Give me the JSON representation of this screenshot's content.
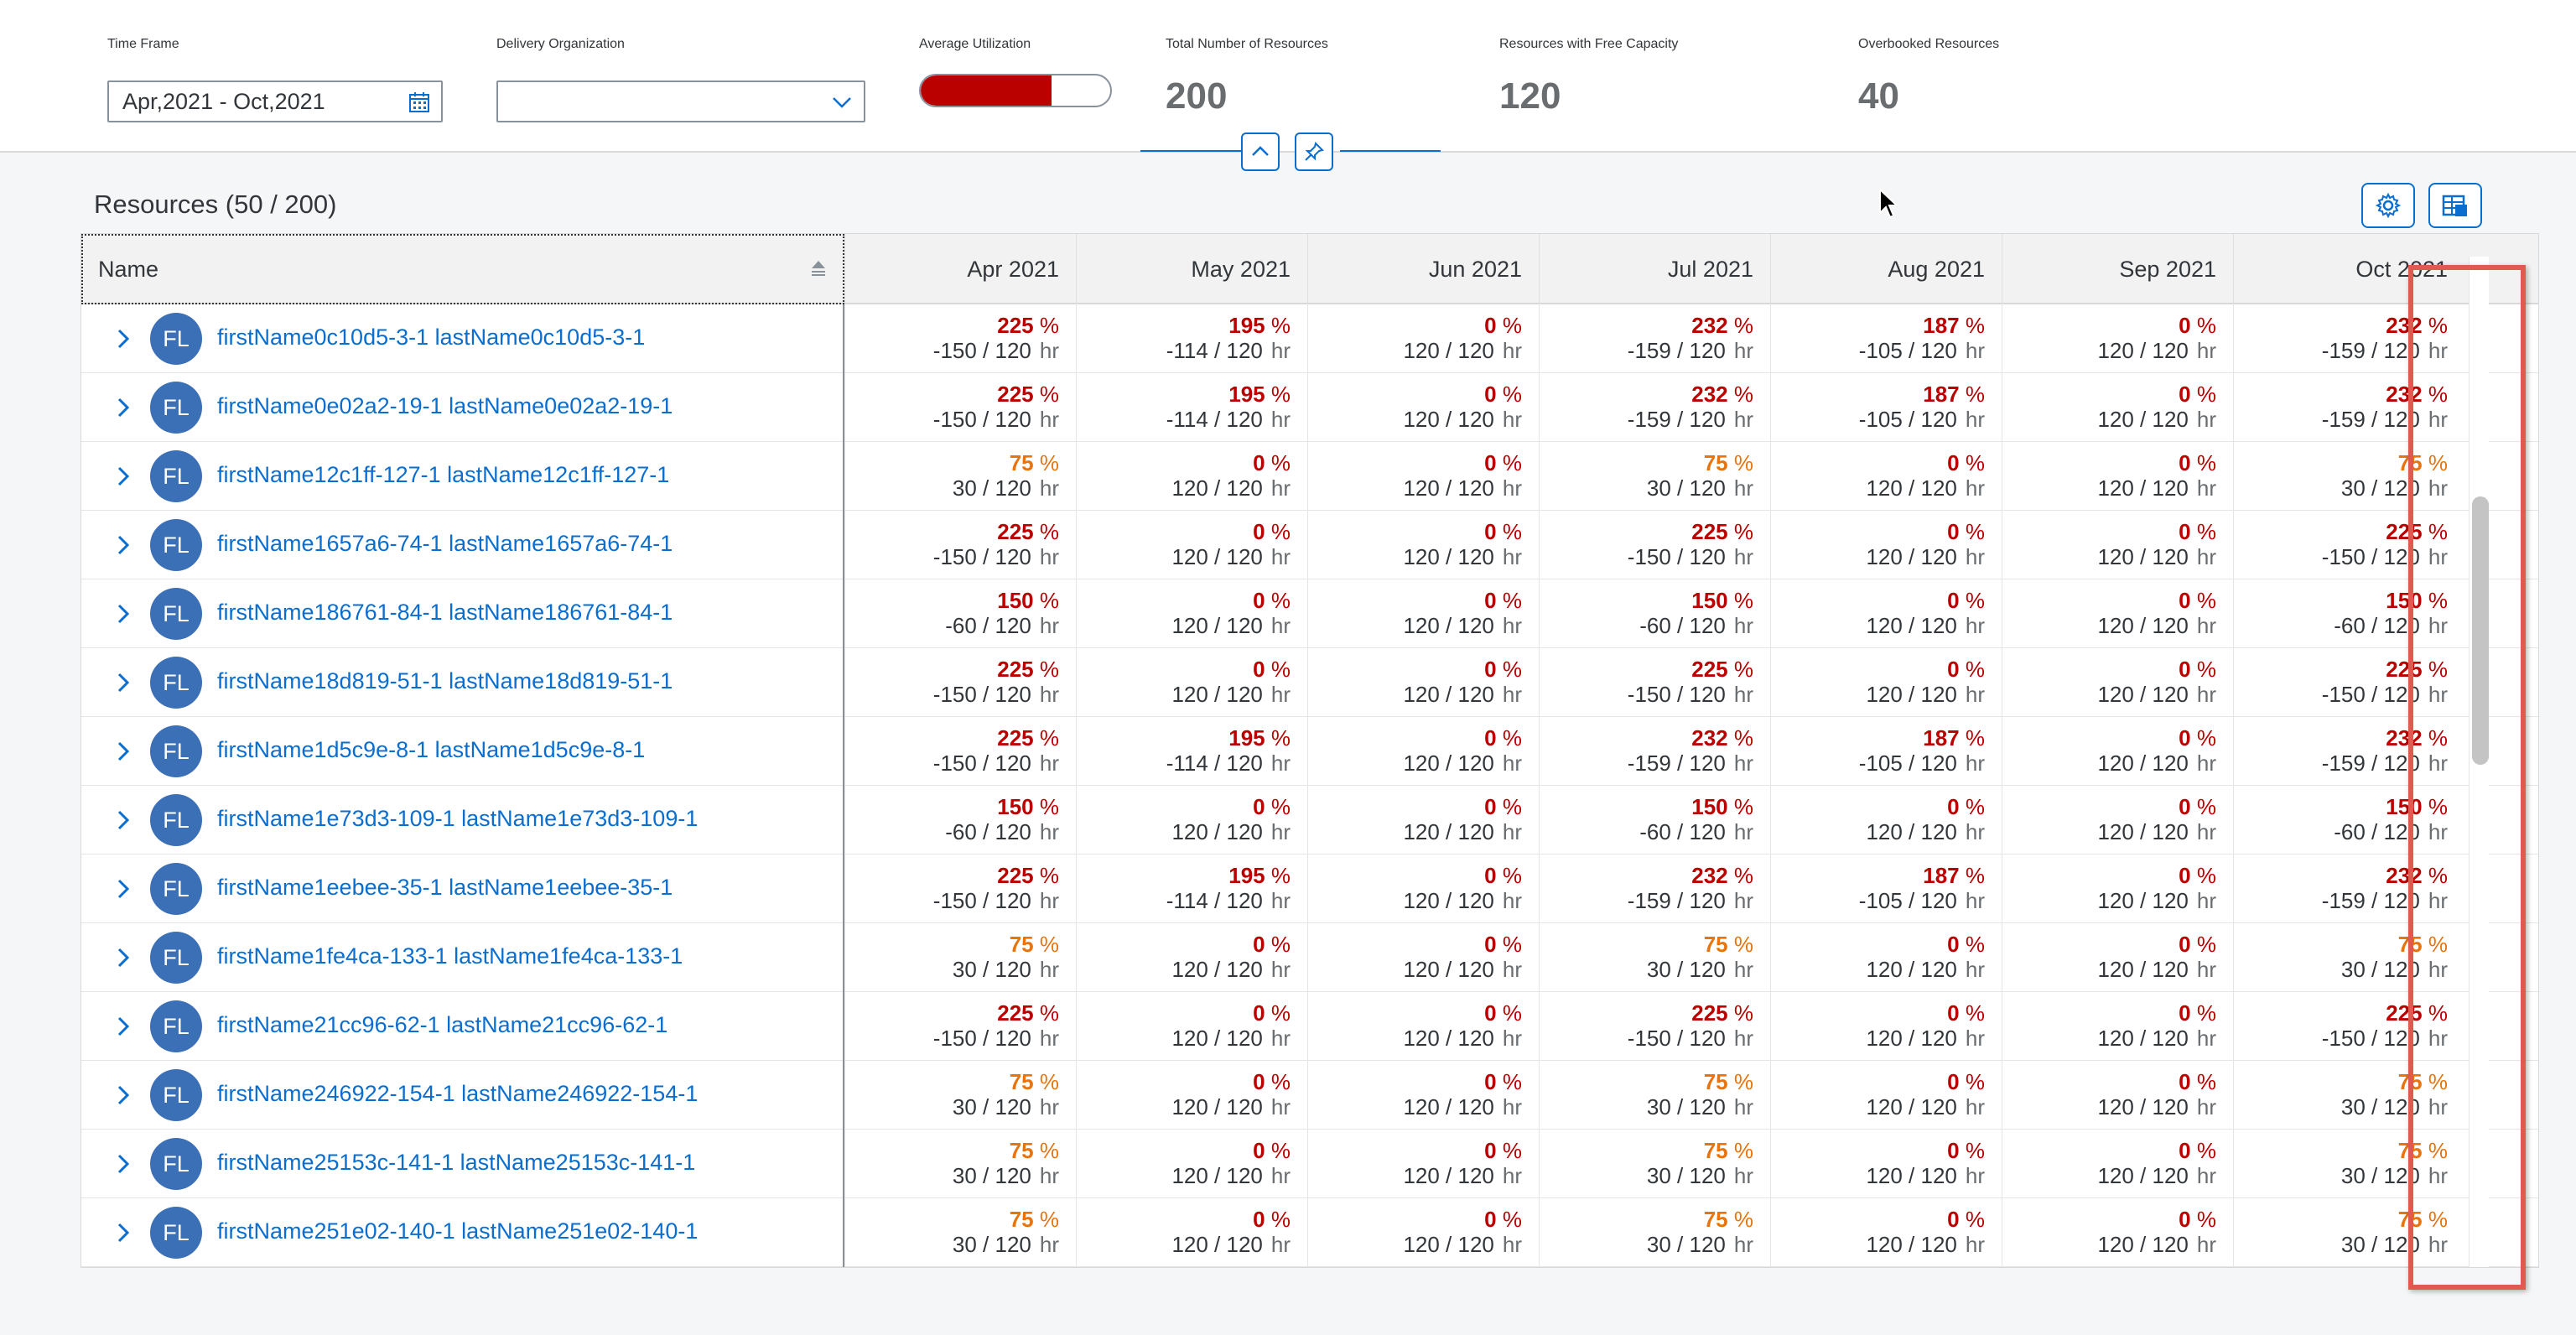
{
  "filters": {
    "time_frame_label": "Time Frame",
    "time_frame_value": "Apr,2021 - Oct,2021",
    "delivery_org_label": "Delivery Organization",
    "delivery_org_value": ""
  },
  "kpis": {
    "avg_util_label": "Average Utilization",
    "avg_util_value": "69%",
    "avg_util_fraction": 0.69,
    "total_label": "Total Number of Resources",
    "total_value": "200",
    "free_label": "Resources with Free Capacity",
    "free_value": "120",
    "overbooked_label": "Overbooked Resources",
    "overbooked_value": "40"
  },
  "table": {
    "title": "Resources (50 / 200)",
    "name_header": "Name",
    "months": [
      "Apr 2021",
      "May 2021",
      "Jun 2021",
      "Jul 2021",
      "Aug 2021",
      "Sep 2021",
      "Oct 2021"
    ],
    "unit_pct": "%",
    "unit_hr": "hr",
    "rows": [
      {
        "initials": "FL",
        "name": "firstName0c10d5-3-1 lastName0c10d5-3-1",
        "cells": [
          [
            "225",
            "-150 / 120"
          ],
          [
            "195",
            "-114 / 120"
          ],
          [
            "0",
            "120 / 120"
          ],
          [
            "232",
            "-159 / 120"
          ],
          [
            "187",
            "-105 / 120"
          ],
          [
            "0",
            "120 / 120"
          ],
          [
            "232",
            "-159 / 120"
          ]
        ]
      },
      {
        "initials": "FL",
        "name": "firstName0e02a2-19-1 lastName0e02a2-19-1",
        "cells": [
          [
            "225",
            "-150 / 120"
          ],
          [
            "195",
            "-114 / 120"
          ],
          [
            "0",
            "120 / 120"
          ],
          [
            "232",
            "-159 / 120"
          ],
          [
            "187",
            "-105 / 120"
          ],
          [
            "0",
            "120 / 120"
          ],
          [
            "232",
            "-159 / 120"
          ]
        ]
      },
      {
        "initials": "FL",
        "name": "firstName12c1ff-127-1 lastName12c1ff-127-1",
        "cells": [
          [
            "75",
            "30 / 120"
          ],
          [
            "0",
            "120 / 120"
          ],
          [
            "0",
            "120 / 120"
          ],
          [
            "75",
            "30 / 120"
          ],
          [
            "0",
            "120 / 120"
          ],
          [
            "0",
            "120 / 120"
          ],
          [
            "75",
            "30 / 120"
          ]
        ]
      },
      {
        "initials": "FL",
        "name": "firstName1657a6-74-1 lastName1657a6-74-1",
        "cells": [
          [
            "225",
            "-150 / 120"
          ],
          [
            "0",
            "120 / 120"
          ],
          [
            "0",
            "120 / 120"
          ],
          [
            "225",
            "-150 / 120"
          ],
          [
            "0",
            "120 / 120"
          ],
          [
            "0",
            "120 / 120"
          ],
          [
            "225",
            "-150 / 120"
          ]
        ]
      },
      {
        "initials": "FL",
        "name": "firstName186761-84-1 lastName186761-84-1",
        "cells": [
          [
            "150",
            "-60 / 120"
          ],
          [
            "0",
            "120 / 120"
          ],
          [
            "0",
            "120 / 120"
          ],
          [
            "150",
            "-60 / 120"
          ],
          [
            "0",
            "120 / 120"
          ],
          [
            "0",
            "120 / 120"
          ],
          [
            "150",
            "-60 / 120"
          ]
        ]
      },
      {
        "initials": "FL",
        "name": "firstName18d819-51-1 lastName18d819-51-1",
        "cells": [
          [
            "225",
            "-150 / 120"
          ],
          [
            "0",
            "120 / 120"
          ],
          [
            "0",
            "120 / 120"
          ],
          [
            "225",
            "-150 / 120"
          ],
          [
            "0",
            "120 / 120"
          ],
          [
            "0",
            "120 / 120"
          ],
          [
            "225",
            "-150 / 120"
          ]
        ]
      },
      {
        "initials": "FL",
        "name": "firstName1d5c9e-8-1 lastName1d5c9e-8-1",
        "cells": [
          [
            "225",
            "-150 / 120"
          ],
          [
            "195",
            "-114 / 120"
          ],
          [
            "0",
            "120 / 120"
          ],
          [
            "232",
            "-159 / 120"
          ],
          [
            "187",
            "-105 / 120"
          ],
          [
            "0",
            "120 / 120"
          ],
          [
            "232",
            "-159 / 120"
          ]
        ]
      },
      {
        "initials": "FL",
        "name": "firstName1e73d3-109-1 lastName1e73d3-109-1",
        "cells": [
          [
            "150",
            "-60 / 120"
          ],
          [
            "0",
            "120 / 120"
          ],
          [
            "0",
            "120 / 120"
          ],
          [
            "150",
            "-60 / 120"
          ],
          [
            "0",
            "120 / 120"
          ],
          [
            "0",
            "120 / 120"
          ],
          [
            "150",
            "-60 / 120"
          ]
        ]
      },
      {
        "initials": "FL",
        "name": "firstName1eebee-35-1 lastName1eebee-35-1",
        "cells": [
          [
            "225",
            "-150 / 120"
          ],
          [
            "195",
            "-114 / 120"
          ],
          [
            "0",
            "120 / 120"
          ],
          [
            "232",
            "-159 / 120"
          ],
          [
            "187",
            "-105 / 120"
          ],
          [
            "0",
            "120 / 120"
          ],
          [
            "232",
            "-159 / 120"
          ]
        ]
      },
      {
        "initials": "FL",
        "name": "firstName1fe4ca-133-1 lastName1fe4ca-133-1",
        "cells": [
          [
            "75",
            "30 / 120"
          ],
          [
            "0",
            "120 / 120"
          ],
          [
            "0",
            "120 / 120"
          ],
          [
            "75",
            "30 / 120"
          ],
          [
            "0",
            "120 / 120"
          ],
          [
            "0",
            "120 / 120"
          ],
          [
            "75",
            "30 / 120"
          ]
        ]
      },
      {
        "initials": "FL",
        "name": "firstName21cc96-62-1 lastName21cc96-62-1",
        "cells": [
          [
            "225",
            "-150 / 120"
          ],
          [
            "0",
            "120 / 120"
          ],
          [
            "0",
            "120 / 120"
          ],
          [
            "225",
            "-150 / 120"
          ],
          [
            "0",
            "120 / 120"
          ],
          [
            "0",
            "120 / 120"
          ],
          [
            "225",
            "-150 / 120"
          ]
        ]
      },
      {
        "initials": "FL",
        "name": "firstName246922-154-1 lastName246922-154-1",
        "cells": [
          [
            "75",
            "30 / 120"
          ],
          [
            "0",
            "120 / 120"
          ],
          [
            "0",
            "120 / 120"
          ],
          [
            "75",
            "30 / 120"
          ],
          [
            "0",
            "120 / 120"
          ],
          [
            "0",
            "120 / 120"
          ],
          [
            "75",
            "30 / 120"
          ]
        ]
      },
      {
        "initials": "FL",
        "name": "firstName25153c-141-1 lastName25153c-141-1",
        "cells": [
          [
            "75",
            "30 / 120"
          ],
          [
            "0",
            "120 / 120"
          ],
          [
            "0",
            "120 / 120"
          ],
          [
            "75",
            "30 / 120"
          ],
          [
            "0",
            "120 / 120"
          ],
          [
            "0",
            "120 / 120"
          ],
          [
            "75",
            "30 / 120"
          ]
        ]
      },
      {
        "initials": "FL",
        "name": "firstName251e02-140-1 lastName251e02-140-1",
        "cells": [
          [
            "75",
            "30 / 120"
          ],
          [
            "0",
            "120 / 120"
          ],
          [
            "0",
            "120 / 120"
          ],
          [
            "75",
            "30 / 120"
          ],
          [
            "0",
            "120 / 120"
          ],
          [
            "0",
            "120 / 120"
          ],
          [
            "75",
            "30 / 120"
          ]
        ]
      }
    ]
  },
  "colors": {
    "overbooked": "#bb0000",
    "underutilized": "#e9730c",
    "link": "#0a6ed1",
    "avatar": "#3c70b6",
    "highlight": "#e05a52"
  },
  "icons": {
    "date_picker": "calendar-icon",
    "dropdown": "chevron-down-icon",
    "collapse": "chevron-up-icon",
    "pin": "pin-icon",
    "settings": "gear-icon",
    "export": "export-icon",
    "expand_row": "chevron-right-icon",
    "sort": "sort-icon"
  }
}
